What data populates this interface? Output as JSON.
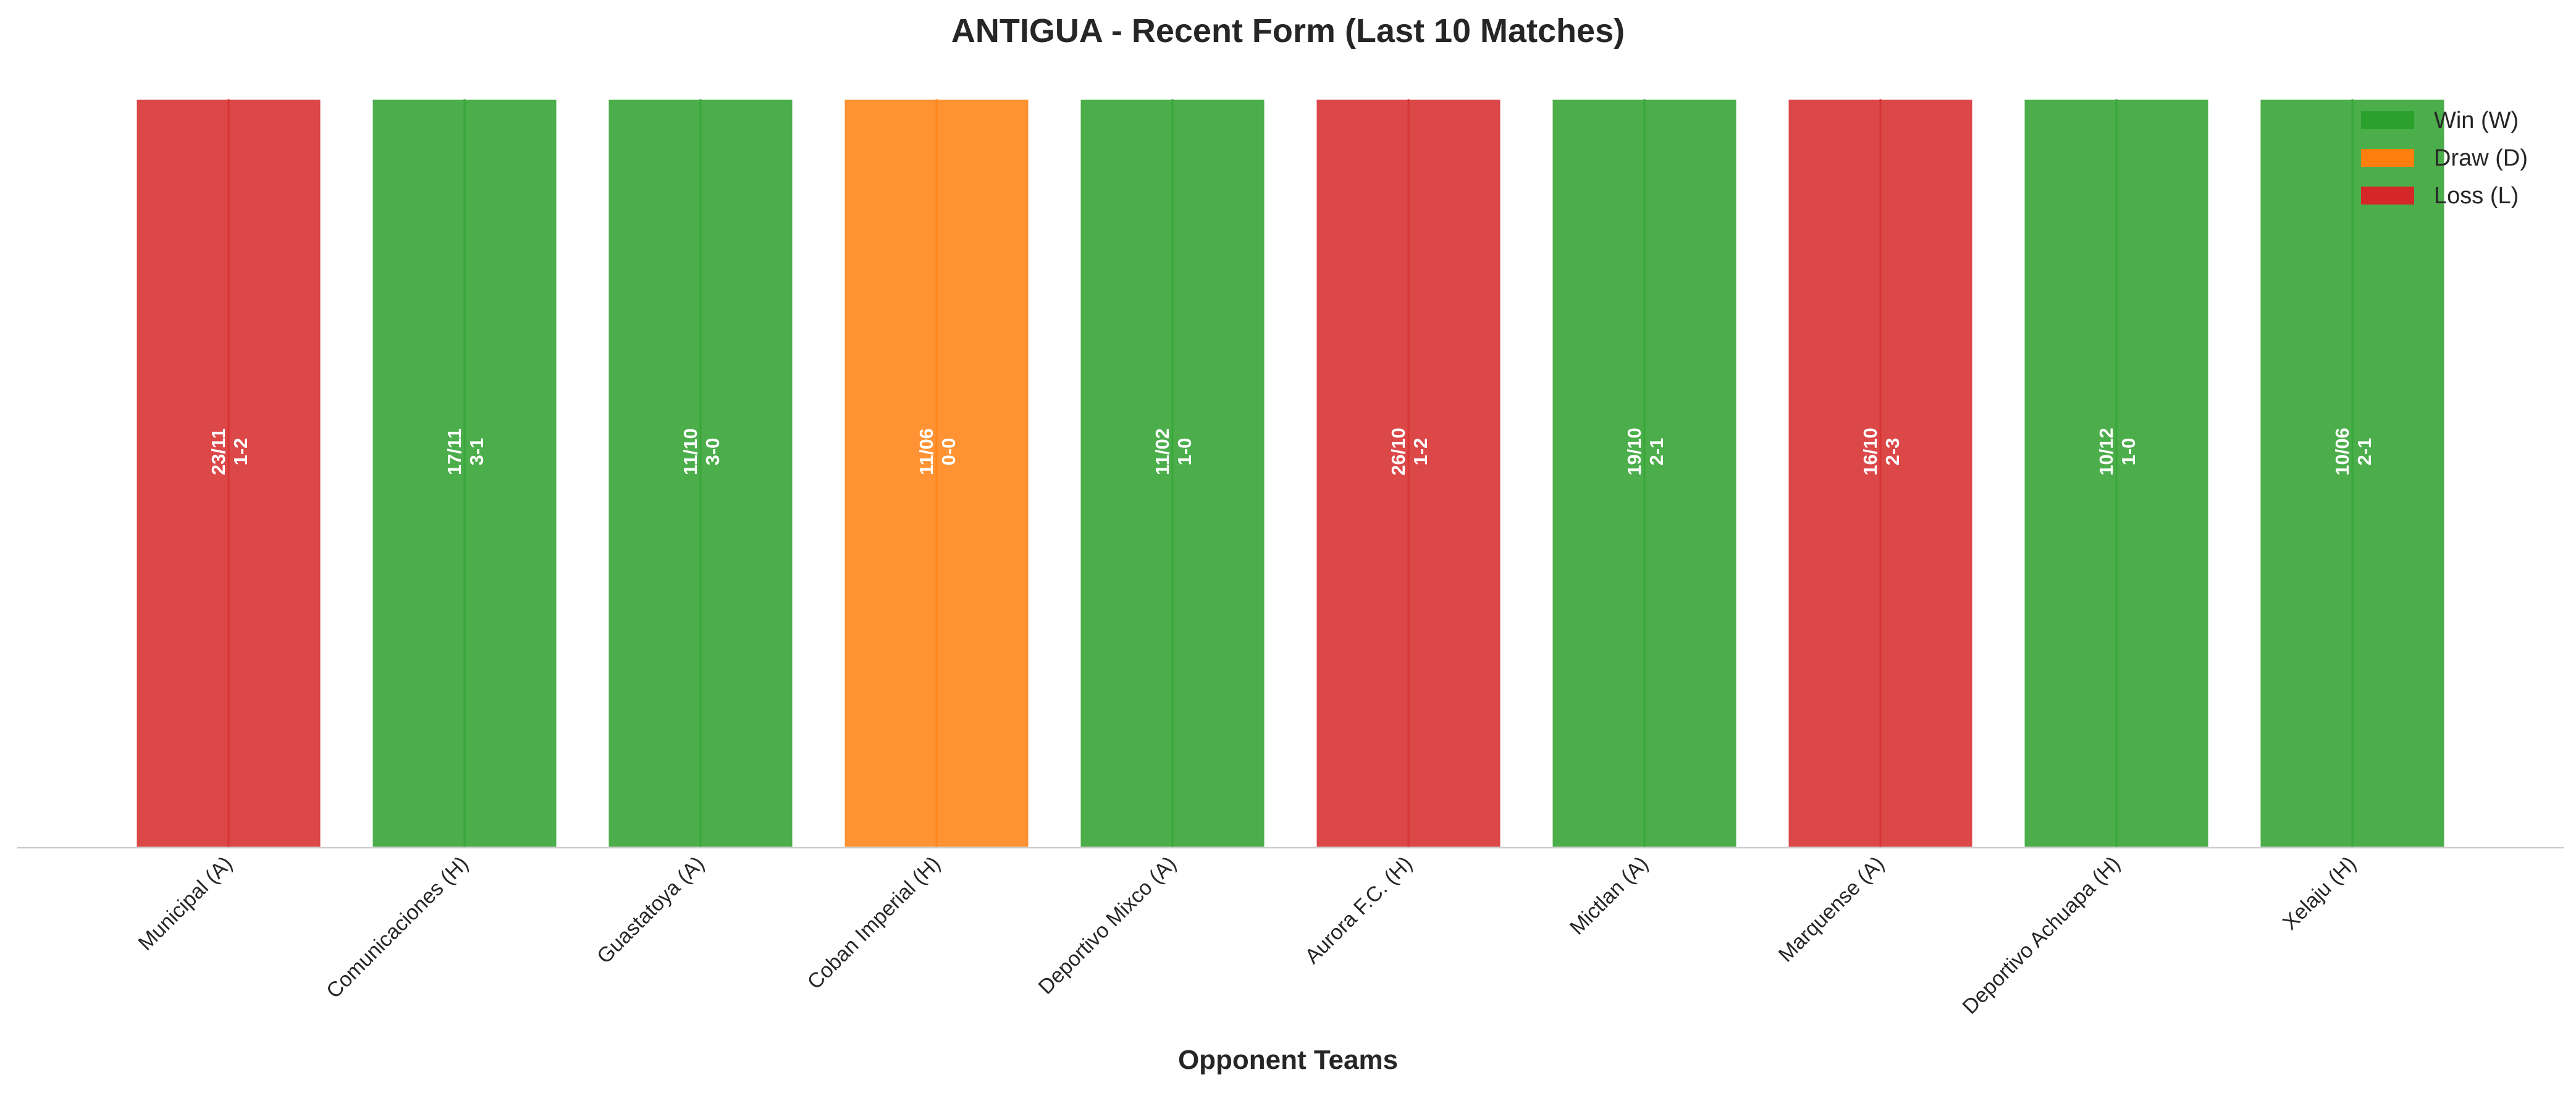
{
  "chart_data": {
    "type": "bar",
    "title": "ANTIGUA - Recent Form (Last 10 Matches)",
    "xlabel": "Opponent Teams",
    "ylabel": "",
    "ylim": [
      0,
      1
    ],
    "grid": false,
    "legend_position": "top-right",
    "colors": {
      "W": "#2ca02c",
      "D": "#ff7f0e",
      "L": "#d62728"
    },
    "legend": [
      {
        "result": "W",
        "label": "Win (W)"
      },
      {
        "result": "D",
        "label": "Draw (D)"
      },
      {
        "result": "L",
        "label": "Loss (L)"
      }
    ],
    "categories": [
      "Municipal (A)",
      "Comunicaciones (H)",
      "Guastatoya (A)",
      "Coban Imperial (H)",
      "Deportivo Mixco (A)",
      "Aurora F.C. (H)",
      "Mictlan (A)",
      "Marquense (A)",
      "Deportivo Achuapa (H)",
      "Xelaju (H)"
    ],
    "values": [
      1,
      1,
      1,
      1,
      1,
      1,
      1,
      1,
      1,
      1
    ],
    "results": [
      "L",
      "W",
      "W",
      "D",
      "W",
      "L",
      "W",
      "L",
      "W",
      "W"
    ],
    "dates": [
      "23/11",
      "17/11",
      "11/10",
      "11/06",
      "11/02",
      "26/10",
      "19/10",
      "16/10",
      "10/12",
      "10/06"
    ],
    "scores": [
      "1-2",
      "3-1",
      "3-0",
      "0-0",
      "1-0",
      "1-2",
      "2-1",
      "2-3",
      "1-0",
      "2-1"
    ]
  }
}
